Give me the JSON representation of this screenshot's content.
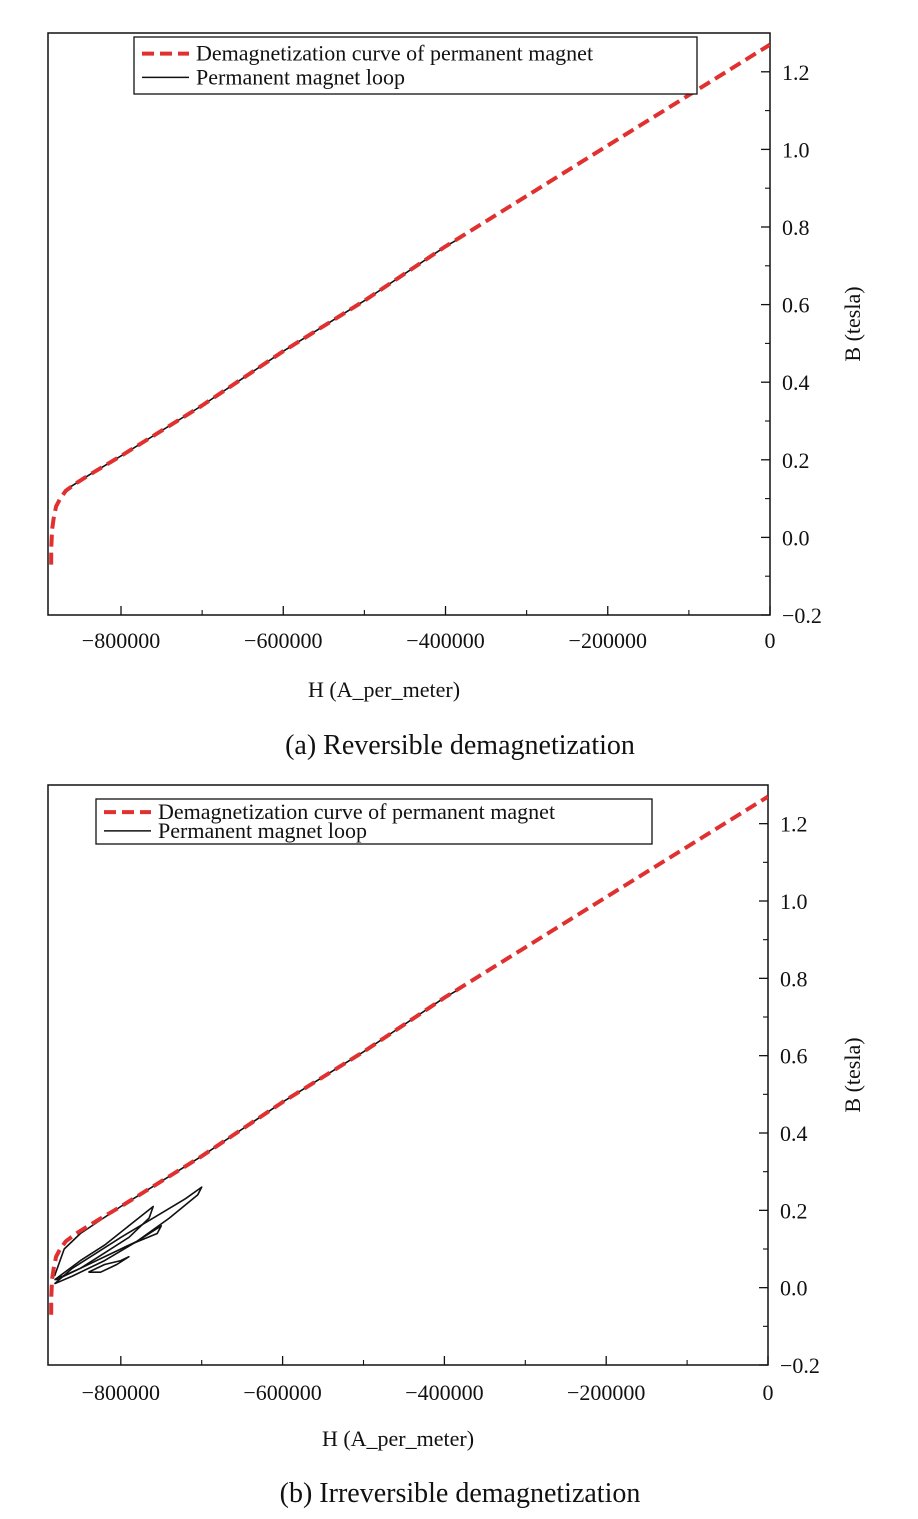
{
  "chart_data": [
    {
      "type": "line",
      "caption": "(a) Reversible demagnetization",
      "xlabel": "H (A_per_meter)",
      "ylabel": "B (tesla)",
      "xlim": [
        -890000,
        0
      ],
      "ylim": [
        -0.2,
        1.3
      ],
      "xticks": [
        -800000,
        -600000,
        -400000,
        -200000,
        0
      ],
      "xtick_labels": [
        "−800000",
        "−600000",
        "−400000",
        "−200000",
        "0"
      ],
      "yticks": [
        -0.2,
        0.0,
        0.2,
        0.4,
        0.6,
        0.8,
        1.0,
        1.2
      ],
      "ytick_labels": [
        "−0.2",
        "0.0",
        "0.2",
        "0.4",
        "0.6",
        "0.8",
        "1.0",
        "1.2"
      ],
      "y_axis_side": "right",
      "grid": false,
      "legend_position": "top",
      "series": [
        {
          "name": "Demagnetization curve of permanent magnet",
          "color": "#e03030",
          "style": "dashed",
          "x": [
            -886000,
            -886000,
            -885000,
            -883000,
            -880000,
            -875000,
            -868000,
            -855000,
            -840000,
            -800000,
            -700000,
            -600000,
            -500000,
            -400000,
            -300000,
            -200000,
            -100000,
            0
          ],
          "y": [
            -0.07,
            -0.03,
            0.02,
            0.05,
            0.08,
            0.1,
            0.12,
            0.14,
            0.16,
            0.21,
            0.34,
            0.48,
            0.61,
            0.75,
            0.88,
            1.01,
            1.14,
            1.27
          ]
        },
        {
          "name": "Permanent magnet loop",
          "color": "#111111",
          "style": "solid",
          "x": [
            -870000,
            -840000,
            -800000,
            -700000,
            -600000,
            -500000,
            -400000,
            -375000
          ],
          "y": [
            0.12,
            0.16,
            0.21,
            0.34,
            0.48,
            0.61,
            0.75,
            0.78
          ]
        }
      ]
    },
    {
      "type": "line",
      "caption": "(b) Irreversible demagnetization",
      "xlabel": "H (A_per_meter)",
      "ylabel": "B (tesla)",
      "xlim": [
        -890000,
        0
      ],
      "ylim": [
        -0.2,
        1.3
      ],
      "xticks": [
        -800000,
        -600000,
        -400000,
        -200000,
        0
      ],
      "xtick_labels": [
        "−800000",
        "−600000",
        "−400000",
        "−200000",
        "0"
      ],
      "yticks": [
        -0.2,
        0.0,
        0.2,
        0.4,
        0.6,
        0.8,
        1.0,
        1.2
      ],
      "ytick_labels": [
        "−0.2",
        "0.0",
        "0.2",
        "0.4",
        "0.6",
        "0.8",
        "1.0",
        "1.2"
      ],
      "y_axis_side": "right",
      "grid": false,
      "legend_position": "top",
      "series": [
        {
          "name": "Demagnetization curve of permanent magnet",
          "color": "#e03030",
          "style": "dashed",
          "x": [
            -886000,
            -886000,
            -885000,
            -883000,
            -880000,
            -875000,
            -868000,
            -855000,
            -840000,
            -800000,
            -700000,
            -600000,
            -500000,
            -400000,
            -300000,
            -200000,
            -100000,
            0
          ],
          "y": [
            -0.07,
            -0.03,
            0.02,
            0.05,
            0.08,
            0.1,
            0.12,
            0.14,
            0.16,
            0.21,
            0.34,
            0.48,
            0.61,
            0.75,
            0.88,
            1.01,
            1.14,
            1.27
          ]
        },
        {
          "name": "Permanent magnet loop",
          "color": "#111111",
          "style": "solid",
          "x": [
            -882000,
            -870000,
            -850000,
            -800000,
            -700000,
            -600000,
            -500000,
            -400000,
            -375000
          ],
          "y": [
            0.03,
            0.1,
            0.14,
            0.21,
            0.34,
            0.48,
            0.61,
            0.75,
            0.78
          ]
        },
        {
          "name": "",
          "color": "#111111",
          "style": "solid",
          "x": [
            -882000,
            -860000,
            -830000,
            -800000,
            -760000,
            -720000,
            -700000,
            -705000,
            -740000,
            -780000,
            -820000,
            -860000,
            -882000
          ],
          "y": [
            0.01,
            0.05,
            0.09,
            0.13,
            0.18,
            0.23,
            0.26,
            0.24,
            0.18,
            0.12,
            0.07,
            0.03,
            0.01
          ]
        },
        {
          "name": "",
          "color": "#111111",
          "style": "solid",
          "x": [
            -882000,
            -850000,
            -820000,
            -790000,
            -760000,
            -765000,
            -790000,
            -820000,
            -850000,
            -882000
          ],
          "y": [
            0.02,
            0.07,
            0.11,
            0.16,
            0.21,
            0.18,
            0.13,
            0.09,
            0.05,
            0.02
          ]
        },
        {
          "name": "",
          "color": "#111111",
          "style": "solid",
          "x": [
            -880000,
            -850000,
            -810000,
            -780000,
            -750000,
            -755000,
            -790000,
            -820000,
            -850000,
            -880000
          ],
          "y": [
            0.02,
            0.05,
            0.09,
            0.12,
            0.16,
            0.14,
            0.11,
            0.08,
            0.05,
            0.02
          ]
        },
        {
          "name": "",
          "color": "#111111",
          "style": "solid",
          "x": [
            -840000,
            -820000,
            -800000,
            -790000,
            -805000,
            -825000,
            -840000
          ],
          "y": [
            0.04,
            0.06,
            0.07,
            0.08,
            0.06,
            0.04,
            0.04
          ]
        }
      ]
    }
  ]
}
